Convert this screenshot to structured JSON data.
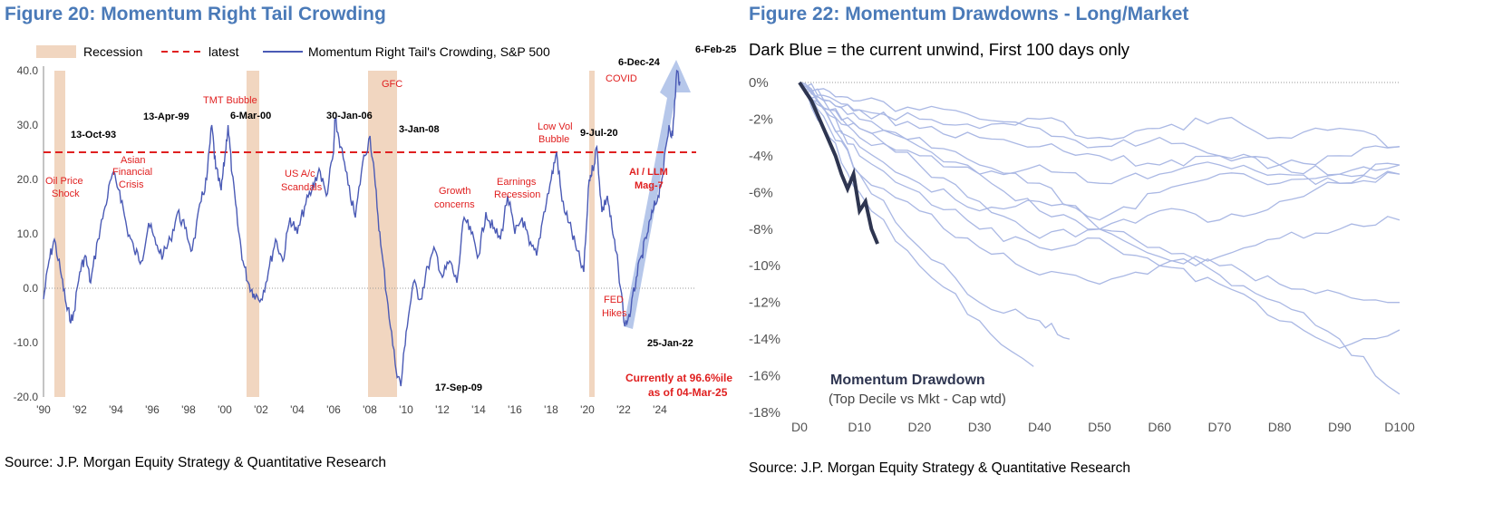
{
  "colors": {
    "title": "#4a7ab8",
    "series": "#4a5ab5",
    "latest": "#e02020",
    "recession": "#f1d6c0",
    "annotation": "#e02020",
    "arrow": "#a9bde6",
    "drawdown_faint": "#aab8e4",
    "drawdown_current": "#2e3550"
  },
  "left": {
    "title": "Figure 20: Momentum Right Tail Crowding",
    "source": "Source: J.P. Morgan Equity Strategy & Quantitative Research",
    "legend": [
      "Recession",
      "latest",
      "Momentum Right Tail's Crowding, S&P 500"
    ]
  },
  "right": {
    "title": "Figure 22: Momentum Drawdowns - Long/Market",
    "subtitle": "Dark Blue = the current unwind, First 100 days only",
    "source": "Source: J.P. Morgan Equity Strategy & Quantitative Research",
    "inner_title": "Momentum Drawdown",
    "inner_subtitle": "(Top Decile vs Mkt - Cap wtd)"
  },
  "chart_data": [
    {
      "type": "line",
      "title": "Figure 20: Momentum Right Tail Crowding",
      "ylim": [
        -20,
        40
      ],
      "xlim": [
        1990,
        2026
      ],
      "y_ticks": [
        "40.0",
        "30.0",
        "20.0",
        "10.0",
        "0.0",
        "-10.0",
        "-20.0"
      ],
      "x_ticks": [
        "'90",
        "'92",
        "'94",
        "'96",
        "'98",
        "'00",
        "'02",
        "'04",
        "'06",
        "'08",
        "'10",
        "'12",
        "'14",
        "'16",
        "'18",
        "'20",
        "'22",
        "'24"
      ],
      "latest": 25,
      "recessions": [
        [
          1990.6,
          1991.2
        ],
        [
          2001.2,
          2001.9
        ],
        [
          2007.9,
          2009.5
        ],
        [
          2020.1,
          2020.4
        ]
      ],
      "series": [
        {
          "name": "Momentum Right Tail's Crowding, S&P 500",
          "x": [
            1990.0,
            1990.3,
            1990.6,
            1991.0,
            1991.3,
            1991.6,
            1992.0,
            1992.3,
            1992.6,
            1993.0,
            1993.4,
            1993.8,
            1994.2,
            1994.6,
            1995.0,
            1995.4,
            1995.8,
            1996.2,
            1996.6,
            1997.0,
            1997.4,
            1997.8,
            1998.2,
            1998.7,
            1999.0,
            1999.28,
            1999.5,
            1999.8,
            2000.0,
            2000.18,
            2000.4,
            2000.7,
            2001.0,
            2001.3,
            2001.6,
            2002.0,
            2002.4,
            2002.8,
            2003.2,
            2003.6,
            2004.0,
            2004.4,
            2004.8,
            2005.2,
            2005.6,
            2006.0,
            2006.08,
            2006.4,
            2006.8,
            2007.2,
            2007.6,
            2008.01,
            2008.3,
            2008.6,
            2009.0,
            2009.4,
            2009.71,
            2010.0,
            2010.4,
            2010.8,
            2011.2,
            2011.6,
            2012.0,
            2012.4,
            2012.8,
            2013.2,
            2013.6,
            2014.0,
            2014.4,
            2014.8,
            2015.2,
            2015.6,
            2016.0,
            2016.4,
            2016.8,
            2017.2,
            2017.6,
            2018.0,
            2018.3,
            2018.6,
            2019.0,
            2019.4,
            2019.8,
            2020.1,
            2020.3,
            2020.52,
            2020.8,
            2021.1,
            2021.4,
            2021.7,
            2022.07,
            2022.4,
            2022.7,
            2023.0,
            2023.3,
            2023.6,
            2023.9,
            2024.2,
            2024.5,
            2024.7,
            2024.93,
            2025.1
          ],
          "values": [
            -2,
            5,
            9,
            2,
            -4,
            -6,
            3,
            6,
            1,
            9,
            15,
            21,
            18,
            11,
            7,
            5,
            12,
            8,
            6,
            9,
            14,
            11,
            7,
            16,
            20,
            30,
            22,
            18,
            24,
            30,
            21,
            12,
            5,
            1,
            -1,
            -2,
            3,
            9,
            5,
            13,
            10,
            15,
            18,
            22,
            17,
            25,
            31,
            26,
            19,
            13,
            23,
            28,
            19,
            8,
            -3,
            -14,
            -18,
            -8,
            1,
            -2,
            4,
            7,
            2,
            5,
            1,
            13,
            10,
            6,
            14,
            11,
            9,
            17,
            10,
            13,
            8,
            6,
            14,
            20,
            25,
            16,
            12,
            7,
            3,
            20,
            22,
            26,
            14,
            17,
            10,
            4,
            -7,
            -4,
            2,
            6,
            10,
            14,
            17,
            22,
            30,
            28,
            40,
            38
          ]
        }
      ],
      "annotations_black": [
        "13-Oct-93",
        "13-Apr-99",
        "6-Mar-00",
        "30-Jan-06",
        "3-Jan-08",
        "9-Jul-20",
        "6-Dec-24",
        "6-Feb-25",
        "17-Sep-09",
        "25-Jan-22"
      ],
      "annotations_red": [
        "TMT Bubble",
        "GFC",
        "COVID",
        "Asian",
        "Financial",
        "Crisis",
        "Oil Price",
        "Shock",
        "US A/c",
        "Scandals",
        "Growth",
        "concerns",
        "Earnings",
        "Recession",
        "Low Vol",
        "Bubble",
        "AI / LLM",
        "Mag-7",
        "FED",
        "Hikes",
        "Currently at 96.6%ile",
        "as of 04-Mar-25"
      ]
    },
    {
      "type": "line",
      "title": "Figure 22: Momentum Drawdowns - Long/Market",
      "xlim": [
        0,
        100
      ],
      "ylim": [
        -18,
        0
      ],
      "x_ticks": [
        "D0",
        "D10",
        "D20",
        "D30",
        "D40",
        "D50",
        "D60",
        "D70",
        "D80",
        "D90",
        "D100"
      ],
      "y_ticks": [
        "0%",
        "-2%",
        "-4%",
        "-6%",
        "-8%",
        "-10%",
        "-12%",
        "-14%",
        "-16%",
        "-18%"
      ],
      "series": [
        {
          "x": [
            0,
            5,
            10,
            20,
            30,
            40,
            50,
            60,
            70,
            80,
            90,
            100
          ],
          "values": [
            0,
            -1.5,
            -2.5,
            -3.0,
            -4.5,
            -5.5,
            -8.0,
            -9.5,
            -10.0,
            -11.0,
            -11.5,
            -12.0
          ]
        },
        {
          "x": [
            0,
            5,
            10,
            20,
            30,
            40,
            50,
            60,
            70,
            80,
            90,
            100
          ],
          "values": [
            0,
            -1.0,
            -2.0,
            -3.5,
            -5.0,
            -7.0,
            -8.0,
            -9.0,
            -10.5,
            -12.0,
            -14.0,
            -17.0
          ]
        },
        {
          "x": [
            0,
            5,
            10,
            20,
            30,
            40,
            50,
            60,
            70,
            80,
            90,
            100
          ],
          "values": [
            0,
            -0.8,
            -1.5,
            -2.0,
            -2.5,
            -2.0,
            -3.0,
            -2.5,
            -2.0,
            -3.0,
            -2.5,
            -3.5
          ]
        },
        {
          "x": [
            0,
            5,
            10,
            20,
            30,
            40,
            50,
            60,
            70,
            80,
            90,
            100
          ],
          "values": [
            0,
            -1.5,
            -3.0,
            -4.0,
            -5.0,
            -4.5,
            -5.5,
            -5.0,
            -4.5,
            -5.0,
            -5.5,
            -5.0
          ]
        },
        {
          "x": [
            0,
            5,
            10,
            20,
            30,
            40,
            50,
            60,
            70,
            80,
            90,
            100
          ],
          "values": [
            0,
            -2.0,
            -4.0,
            -6.0,
            -8.0,
            -9.0,
            -8.5,
            -10.0,
            -11.0,
            -13.0,
            -14.5,
            -13.5
          ]
        },
        {
          "x": [
            0,
            5,
            10,
            20,
            30,
            40,
            50,
            60,
            70,
            80,
            90,
            100
          ],
          "values": [
            0,
            -0.5,
            -1.0,
            -1.5,
            -2.0,
            -2.5,
            -3.5,
            -3.0,
            -4.0,
            -4.5,
            -5.0,
            -4.5
          ]
        },
        {
          "x": [
            0,
            5,
            10,
            20,
            30,
            40,
            50,
            60,
            70,
            80,
            90,
            100
          ],
          "values": [
            0,
            -2.5,
            -5.0,
            -7.0,
            -9.0,
            -10.5,
            -11.0,
            -10.0,
            -9.5,
            -8.5,
            -8.0,
            -7.5
          ]
        },
        {
          "x": [
            0,
            5,
            10,
            20,
            30,
            40,
            50,
            60,
            70,
            80,
            90,
            100
          ],
          "values": [
            0,
            -1.5,
            -2.5,
            -4.5,
            -6.5,
            -8.5,
            -8.0,
            -7.0,
            -7.5,
            -6.5,
            -5.5,
            -5.0
          ]
        },
        {
          "x": [
            0,
            5,
            10,
            20,
            30,
            40,
            45
          ],
          "values": [
            0,
            -2.0,
            -5.0,
            -9.0,
            -12.0,
            -13.0,
            -14.0
          ]
        },
        {
          "x": [
            0,
            5,
            10,
            20,
            30,
            39
          ],
          "values": [
            0,
            -3.0,
            -6.0,
            -10.0,
            -13.0,
            -15.5
          ]
        },
        {
          "x": [
            0,
            5,
            10,
            20,
            30,
            40,
            50,
            60,
            70,
            80,
            90,
            100
          ],
          "values": [
            0,
            -1.0,
            -1.5,
            -2.5,
            -3.0,
            -3.5,
            -4.0,
            -4.5,
            -4.0,
            -4.5,
            -4.0,
            -3.5
          ]
        },
        {
          "x": [
            0,
            5,
            10,
            20,
            30,
            40,
            50,
            60,
            70,
            80,
            90,
            100
          ],
          "values": [
            0,
            -1.8,
            -3.5,
            -5.5,
            -7.0,
            -6.5,
            -7.5,
            -6.0,
            -5.0,
            -5.5,
            -5.0,
            -4.5
          ]
        },
        {
          "x": [
            0,
            2,
            4,
            6,
            7,
            8,
            9,
            10,
            11,
            12,
            13
          ],
          "values": [
            0,
            -1.0,
            -2.5,
            -4.0,
            -5.0,
            -5.8,
            -5.0,
            -7.0,
            -6.5,
            -8.0,
            -8.8
          ],
          "current": true
        }
      ]
    }
  ]
}
